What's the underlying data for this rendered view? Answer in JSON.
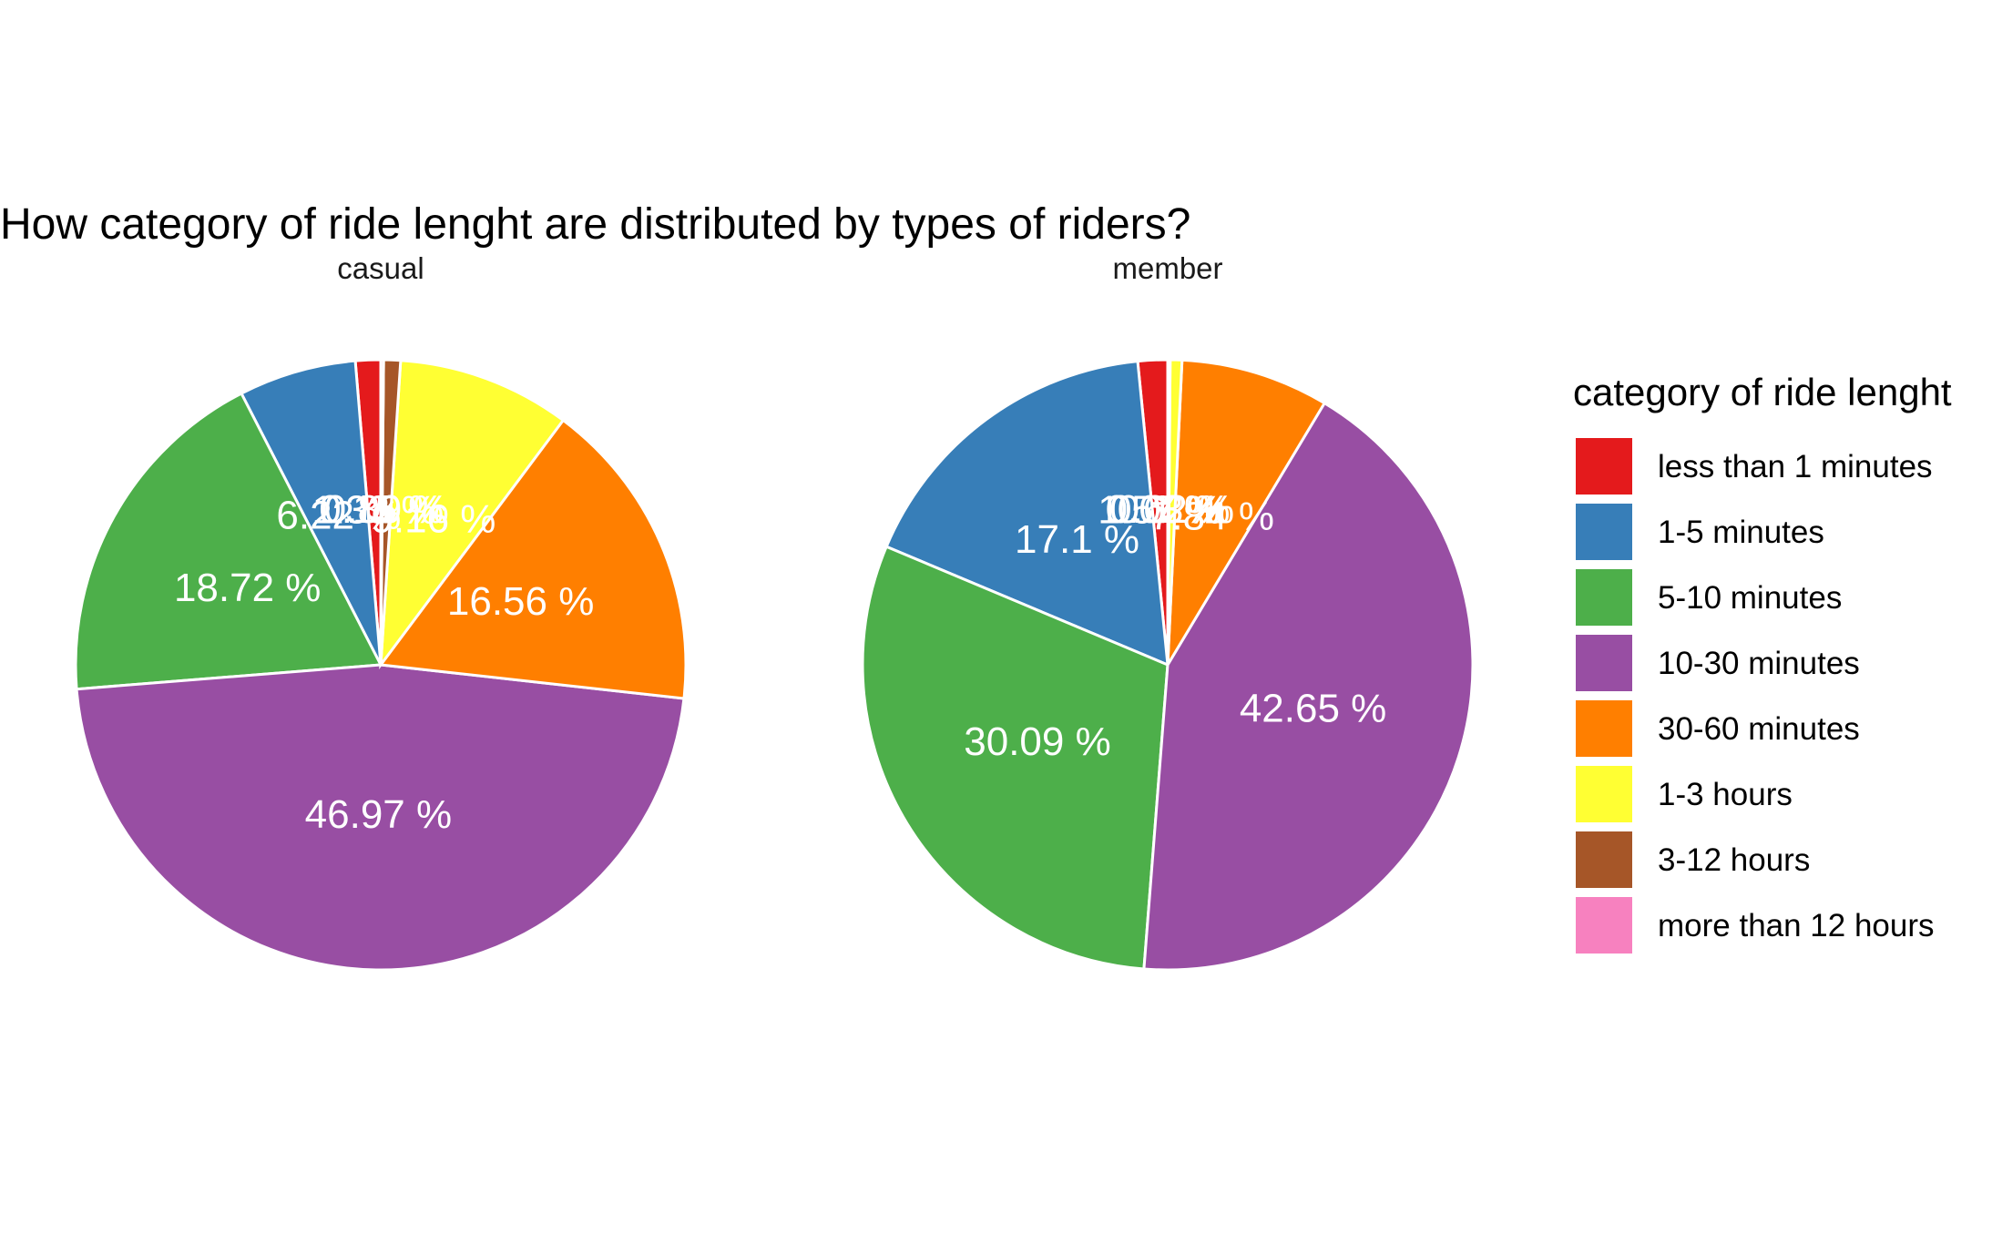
{
  "chart_data": {
    "type": "pie",
    "title": "How category of ride lenght are distributed by types of riders?",
    "categories": [
      "less than 1 minutes",
      "1-5 minutes",
      "5-10 minutes",
      "10-30 minutes",
      "30-60 minutes",
      "1-3 hours",
      "3-12 hours",
      "more than 12 hours"
    ],
    "colors": [
      "#E41A1C",
      "#377EB8",
      "#4DAF4A",
      "#984EA3",
      "#FF7F00",
      "#FFFF33",
      "#A65628",
      "#F781BF"
    ],
    "legend": {
      "title": "category of ride lenght",
      "position": "right"
    },
    "facets": [
      {
        "name": "casual",
        "values": [
          1.33,
          6.22,
          18.72,
          46.97,
          16.56,
          9.16,
          0.89,
          0.15
        ],
        "labels": [
          "1.33 %",
          "6.22 %",
          "18.72 %",
          "46.97 %",
          "16.56 %",
          "9.16 %",
          "0.89 %",
          "0.15 %"
        ]
      },
      {
        "name": "member",
        "values": [
          1.57,
          17.1,
          30.09,
          42.65,
          7.84,
          0.62,
          0.1,
          0.03
        ],
        "labels": [
          "1.57 %",
          "17.1 %",
          "30.09 %",
          "42.65 %",
          "7.84 %",
          "0.62 %",
          "0.1 %",
          "0.03 %"
        ]
      }
    ]
  }
}
